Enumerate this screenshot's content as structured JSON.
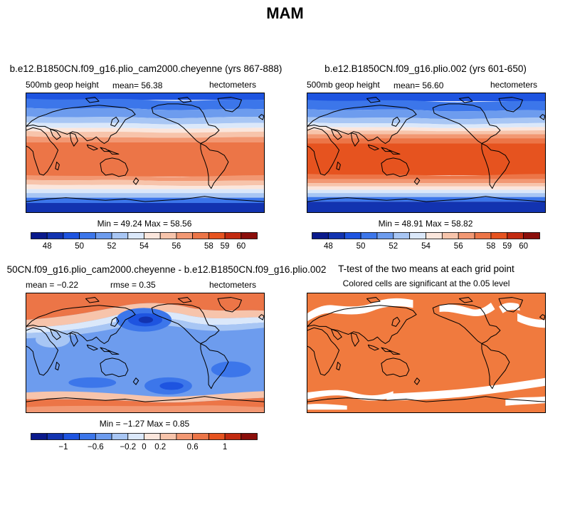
{
  "figure_title": "MAM",
  "colors": {
    "scale": [
      "#0a1a8c",
      "#1233b0",
      "#1e54e0",
      "#3c76ea",
      "#6d9cee",
      "#a8c6f4",
      "#dbe8fa",
      "#fbe6dc",
      "#f7c4ab",
      "#f29873",
      "#ec7547",
      "#e6531f",
      "#c22a10",
      "#8b0e0a"
    ],
    "significant": "#f07a3e",
    "coast": "#000000"
  },
  "chart_data": [
    {
      "type": "heatmap",
      "title": "b.e12.B1850CN.f09_g16.plio_cam2000.cheyenne (yrs 867-888)",
      "left_label": "500mb geop height",
      "mean_text": "mean=   56.38",
      "units": "hectometers",
      "stats_text": "Min =   49.24  Max =   58.56",
      "colorbar": {
        "ticks": [
          "48",
          "50",
          "52",
          "54",
          "56",
          "58",
          "59",
          "60"
        ]
      },
      "value_range": [
        47,
        61
      ]
    },
    {
      "type": "heatmap",
      "title": "b.e12.B1850CN.f09_g16.plio.002 (yrs 601-650)",
      "left_label": "500mb geop height",
      "mean_text": "mean=   56.60",
      "units": "hectometers",
      "stats_text": "Min =   48.91  Max =   58.82",
      "colorbar": {
        "ticks": [
          "48",
          "50",
          "52",
          "54",
          "56",
          "58",
          "59",
          "60"
        ]
      },
      "value_range": [
        47,
        61
      ]
    },
    {
      "type": "heatmap",
      "title": "50CN.f09_g16.plio_cam2000.cheyenne - b.e12.B1850CN.f09_g16.plio.002",
      "left_label": "mean =   −0.22",
      "mean_text": "rmse =    0.35",
      "units": "hectometers",
      "stats_text": "Min =   −1.27  Max =    0.85",
      "colorbar": {
        "ticks": [
          "−1",
          "−0.6",
          "−0.2",
          "0",
          "0.2",
          "0.6",
          "1"
        ]
      },
      "value_range": [
        -1.4,
        1.4
      ]
    },
    {
      "type": "heatmap",
      "title": "T-test of the two means at each grid point",
      "subtitle": "Colored cells are significant at the 0.05 level"
    }
  ]
}
